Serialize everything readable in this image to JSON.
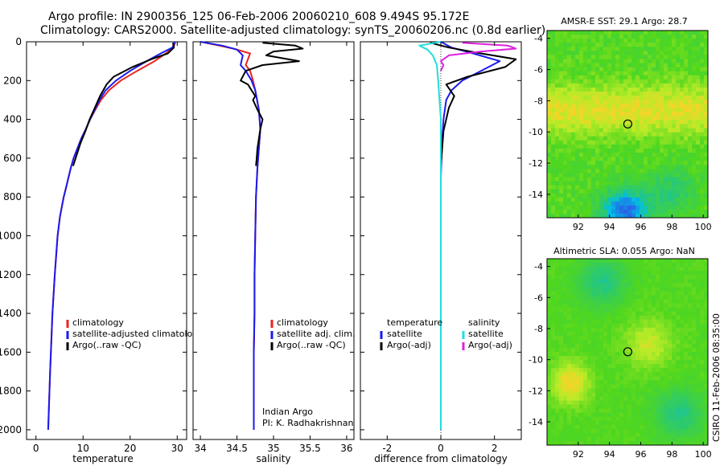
{
  "header": {
    "title_line1": "Argo profile: IN 2900356_125 06-Feb-2006 20060210_608 9.494S 95.172E",
    "title_line2": "Climatology: CARS2000. Satellite-adjusted climatology: synTS_20060206.nc (0.8d earlier)"
  },
  "colors": {
    "climatology": "#e8231f",
    "satellite": "#1a1aee",
    "argo": "#000000",
    "sat_salinity": "#22dddd",
    "argo_salinity": "#dd22dd"
  },
  "chart_data": [
    {
      "type": "line",
      "name": "temperature-profile",
      "xlabel": "temperature",
      "xlim": [
        -2,
        32
      ],
      "ylim": [
        2050,
        0
      ],
      "xticks": [
        "0",
        "10",
        "20",
        "30"
      ],
      "yticks": [
        "0",
        "200",
        "400",
        "600",
        "800",
        "1000",
        "1200",
        "1400",
        "1600",
        "1800",
        "2000"
      ],
      "legend": [
        "climatology",
        "satellite-adjusted climatology",
        "Argo(..raw -QC)"
      ],
      "series": [
        {
          "name": "climatology",
          "color": "#e8231f",
          "x": [
            29.6,
            29.2,
            27.6,
            25.2,
            21.5,
            18.0,
            15.5,
            13.8,
            12.6,
            11.5,
            10.6,
            9.6,
            8.8,
            8.0,
            7.4,
            6.9,
            6.4,
            5.9,
            5.5,
            5.1,
            4.6,
            4.0,
            3.5,
            3.0,
            2.6
          ],
          "y": [
            0,
            30,
            60,
            100,
            150,
            200,
            250,
            300,
            350,
            400,
            450,
            500,
            550,
            600,
            650,
            700,
            750,
            800,
            850,
            900,
            1000,
            1200,
            1400,
            1700,
            2000
          ]
        },
        {
          "name": "satellite-adjusted climatology",
          "color": "#1a1aee",
          "x": [
            29.5,
            29.0,
            26.5,
            23.5,
            20.0,
            17.0,
            14.8,
            13.5,
            12.5,
            11.5,
            10.6,
            9.6,
            8.8,
            8.0,
            7.4,
            6.9,
            6.4,
            5.9,
            5.5,
            5.1,
            4.6,
            4.0,
            3.5,
            3.0,
            2.6
          ],
          "y": [
            0,
            30,
            60,
            100,
            150,
            200,
            250,
            300,
            350,
            400,
            450,
            500,
            550,
            600,
            650,
            700,
            750,
            800,
            850,
            900,
            1000,
            1200,
            1400,
            1700,
            2000
          ]
        },
        {
          "name": "Argo(..raw -QC)",
          "color": "#000000",
          "x": [
            29.1,
            29.3,
            28.0,
            24.5,
            20.5,
            16.5,
            15.0,
            13.6,
            12.5,
            11.4,
            10.5,
            9.5,
            8.7,
            7.9
          ],
          "y": [
            5,
            30,
            60,
            90,
            130,
            180,
            220,
            280,
            340,
            400,
            460,
            520,
            580,
            640
          ]
        }
      ]
    },
    {
      "type": "line",
      "name": "salinity-profile",
      "xlabel": "salinity",
      "xlim": [
        33.9,
        36.1
      ],
      "ylim": [
        2050,
        0
      ],
      "xticks": [
        "34",
        "34.5",
        "35",
        "35.5",
        "36"
      ],
      "legend": [
        "climatology",
        "satellite adj. clim.",
        "Argo(..raw -QC)"
      ],
      "note_line1": "Indian Argo",
      "note_line2": "PI: K. Radhakrishnan",
      "series": [
        {
          "name": "climatology",
          "color": "#e8231f",
          "x": [
            34.0,
            34.2,
            34.45,
            34.68,
            34.62,
            34.68,
            34.72,
            34.75,
            34.8,
            34.82,
            34.8,
            34.78,
            34.76,
            34.75,
            34.74,
            34.74,
            34.73,
            34.73,
            34.73
          ],
          "y": [
            0,
            15,
            35,
            60,
            120,
            150,
            200,
            250,
            350,
            450,
            550,
            650,
            800,
            1000,
            1200,
            1400,
            1600,
            1800,
            2000
          ]
        },
        {
          "name": "satellite adj. clim.",
          "color": "#1a1aee",
          "x": [
            34.0,
            34.3,
            34.5,
            34.58,
            34.55,
            34.62,
            34.7,
            34.75,
            34.8,
            34.82,
            34.8,
            34.78,
            34.76,
            34.75,
            34.74,
            34.74,
            34.73,
            34.73,
            34.73
          ],
          "y": [
            0,
            20,
            40,
            70,
            120,
            150,
            200,
            250,
            350,
            450,
            550,
            650,
            800,
            1000,
            1200,
            1400,
            1600,
            1800,
            2000
          ]
        },
        {
          "name": "Argo(..raw -QC)",
          "color": "#000000",
          "x": [
            34.85,
            35.3,
            35.4,
            35.0,
            34.9,
            35.35,
            34.85,
            34.62,
            34.55,
            34.65,
            34.7,
            34.75,
            34.72,
            34.78,
            34.85,
            34.82,
            34.8,
            34.78,
            34.77,
            34.76
          ],
          "y": [
            5,
            20,
            35,
            50,
            70,
            100,
            120,
            150,
            200,
            220,
            250,
            280,
            300,
            350,
            400,
            450,
            500,
            550,
            600,
            640
          ]
        }
      ]
    },
    {
      "type": "line",
      "name": "difference-profile",
      "xlabel": "difference from climatology",
      "xlim": [
        -3,
        3
      ],
      "ylim": [
        2050,
        0
      ],
      "xticks": [
        "-2",
        "0",
        "2"
      ],
      "legend_temperature_header": "temperature",
      "legend_salinity_header": "salinity",
      "legend": [
        "satellite",
        "Argo(-adj)",
        "satellite",
        "Argo(-adj)"
      ],
      "series": [
        {
          "name": "temperature satellite",
          "color": "#1a1aee",
          "x": [
            0.0,
            0.4,
            1.2,
            2.2,
            1.5,
            0.8,
            0.4,
            0.2,
            0.1,
            0.05,
            0.0,
            0.0,
            0.0,
            0.0,
            0.0
          ],
          "y": [
            0,
            30,
            60,
            100,
            150,
            200,
            250,
            300,
            400,
            500,
            700,
            1000,
            1400,
            1800,
            2000
          ]
        },
        {
          "name": "temperature Argo(-adj)",
          "color": "#000000",
          "x": [
            -0.4,
            0.3,
            1.5,
            2.8,
            2.4,
            1.0,
            0.2,
            0.5,
            0.3,
            0.1,
            0.0
          ],
          "y": [
            5,
            30,
            60,
            90,
            130,
            180,
            220,
            280,
            340,
            460,
            640
          ]
        },
        {
          "name": "salinity satellite",
          "color": "#22dddd",
          "x": [
            0.0,
            -0.8,
            -0.5,
            -0.3,
            -0.15,
            -0.1,
            -0.05,
            0.0,
            0.0,
            0.0,
            0.0,
            0.0,
            0.0
          ],
          "y": [
            0,
            20,
            40,
            70,
            120,
            200,
            300,
            400,
            500,
            700,
            1000,
            1400,
            2000
          ]
        },
        {
          "name": "salinity Argo(-adj)",
          "color": "#dd22dd",
          "x": [
            0.8,
            2.5,
            2.8,
            1.5,
            0.3,
            0.0,
            0.1,
            0.0
          ],
          "y": [
            5,
            20,
            35,
            50,
            70,
            100,
            120,
            150
          ]
        }
      ]
    },
    {
      "type": "heatmap",
      "name": "sst-map",
      "title": "AMSR-E SST: 29.1 Argo: 28.7",
      "xlim": [
        90,
        100.3
      ],
      "ylim": [
        -15.5,
        -3.5
      ],
      "xticks": [
        "92",
        "94",
        "96",
        "98",
        "100"
      ],
      "yticks": [
        "-4",
        "-6",
        "-8",
        "-10",
        "-12",
        "-14"
      ],
      "marker": {
        "lon": 95.17,
        "lat": -9.49
      }
    },
    {
      "type": "heatmap",
      "name": "sla-map",
      "title": "Altimetric SLA: 0.055 Argo: NaN",
      "xlim": [
        90,
        100.3
      ],
      "ylim": [
        -15.5,
        -3.5
      ],
      "xticks": [
        "92",
        "94",
        "96",
        "98",
        "100"
      ],
      "yticks": [
        "-4",
        "-6",
        "-8",
        "-10",
        "-12",
        "-14"
      ],
      "marker": {
        "lon": 95.17,
        "lat": -9.49
      }
    }
  ],
  "footer": {
    "credit": "CSIRO 11-Feb-2006 08:35:00"
  }
}
